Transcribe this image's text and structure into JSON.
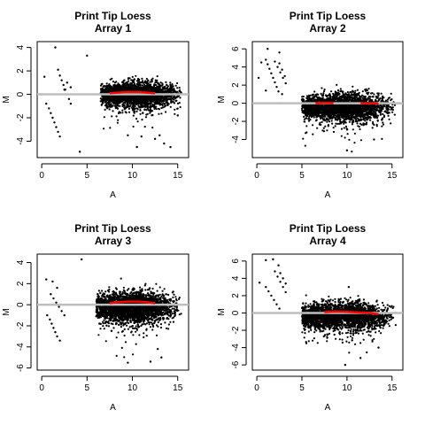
{
  "chart_data": [
    {
      "type": "scatter",
      "title": "Print Tip Loess",
      "subtitle": "Array 1",
      "xlabel": "A",
      "ylabel": "M",
      "xlim": [
        -0.5,
        16.2
      ],
      "ylim": [
        -5.4,
        4.5
      ],
      "xticks": [
        0,
        5,
        10,
        15
      ],
      "yticks": [
        -4,
        -2,
        0,
        2,
        4
      ],
      "reference_line_y": 0,
      "loess_curves": [
        {
          "x": [
            7.5,
            8.5,
            9.5,
            10.5,
            11.5,
            12.5
          ],
          "y": [
            0.1,
            0.15,
            0.2,
            0.2,
            0.15,
            0.1
          ]
        }
      ],
      "main_cloud": {
        "x_range": [
          6.5,
          15.5
        ],
        "y_spread_sd": 0.55,
        "center_y": 0.0
      },
      "outliers": [
        {
          "x": 1.5,
          "y": 4.0
        },
        {
          "x": 0.3,
          "y": 1.5
        },
        {
          "x": 5.0,
          "y": 3.3
        },
        {
          "x": 4.2,
          "y": -4.9
        },
        {
          "x": 0.5,
          "y": -0.8
        },
        {
          "x": 0.8,
          "y": -1.2
        },
        {
          "x": 1.0,
          "y": -1.6
        },
        {
          "x": 1.2,
          "y": -2.0
        },
        {
          "x": 1.4,
          "y": -2.4
        },
        {
          "x": 1.6,
          "y": -2.8
        },
        {
          "x": 1.8,
          "y": -3.2
        },
        {
          "x": 2.0,
          "y": -3.6
        },
        {
          "x": 1.8,
          "y": 2.1
        },
        {
          "x": 2.0,
          "y": 1.6
        },
        {
          "x": 2.2,
          "y": 1.2
        },
        {
          "x": 2.4,
          "y": 0.8
        },
        {
          "x": 2.6,
          "y": 0.4
        },
        {
          "x": 2.8,
          "y": 0.0
        },
        {
          "x": 3.0,
          "y": -0.4
        },
        {
          "x": 3.2,
          "y": -0.8
        },
        {
          "x": 2.5,
          "y": 0.4
        },
        {
          "x": 2.8,
          "y": 1.0
        },
        {
          "x": 3.2,
          "y": 0.6
        },
        {
          "x": 13.0,
          "y": -3.5
        },
        {
          "x": 13.5,
          "y": -4.2
        },
        {
          "x": 14.2,
          "y": -4.5
        },
        {
          "x": 12.5,
          "y": -3.8
        },
        {
          "x": 9.5,
          "y": -3.5
        },
        {
          "x": 11.0,
          "y": -3.6
        },
        {
          "x": 10.5,
          "y": -4.5
        },
        {
          "x": 15.0,
          "y": -1.8
        }
      ]
    },
    {
      "type": "scatter",
      "title": "Print Tip Loess",
      "subtitle": "Array 2",
      "xlabel": "A",
      "ylabel": "M",
      "xlim": [
        -0.5,
        16.2
      ],
      "ylim": [
        -6.0,
        6.8
      ],
      "xticks": [
        0,
        5,
        10,
        15
      ],
      "yticks": [
        -4,
        -2,
        0,
        2,
        4,
        6
      ],
      "reference_line_y": 0,
      "loess_curves": [
        {
          "x": [
            6.5,
            7.5,
            8.5
          ],
          "y": [
            0.0,
            0.05,
            0.0
          ]
        },
        {
          "x": [
            11.5,
            12.5,
            13.5
          ],
          "y": [
            0.0,
            0.0,
            -0.05
          ]
        }
      ],
      "main_cloud": {
        "x_range": [
          5.0,
          15.5
        ],
        "y_spread_sd": 0.8,
        "center_y": -0.4
      },
      "outliers": [
        {
          "x": 1.2,
          "y": 6.0
        },
        {
          "x": 0.5,
          "y": 4.5
        },
        {
          "x": 0.2,
          "y": 2.8
        },
        {
          "x": 2.5,
          "y": 5.6
        },
        {
          "x": 1.0,
          "y": 1.4
        },
        {
          "x": 2.8,
          "y": 1.0
        },
        {
          "x": 2.6,
          "y": 0.0
        },
        {
          "x": 1.0,
          "y": 4.8
        },
        {
          "x": 1.2,
          "y": 4.3
        },
        {
          "x": 1.4,
          "y": 3.8
        },
        {
          "x": 1.6,
          "y": 3.3
        },
        {
          "x": 1.8,
          "y": 2.8
        },
        {
          "x": 2.0,
          "y": 2.3
        },
        {
          "x": 2.2,
          "y": 1.8
        },
        {
          "x": 2.4,
          "y": 1.3
        },
        {
          "x": 2.0,
          "y": 4.6
        },
        {
          "x": 2.3,
          "y": 4.0
        },
        {
          "x": 2.6,
          "y": 3.4
        },
        {
          "x": 2.9,
          "y": 2.8
        },
        {
          "x": 3.2,
          "y": 2.2
        },
        {
          "x": 2.5,
          "y": 4.4
        },
        {
          "x": 2.8,
          "y": 3.7
        },
        {
          "x": 3.1,
          "y": 3.0
        },
        {
          "x": 10.0,
          "y": -5.2
        },
        {
          "x": 13.0,
          "y": -4.0
        }
      ]
    },
    {
      "type": "scatter",
      "title": "Print Tip Loess",
      "subtitle": "Array 3",
      "xlabel": "A",
      "ylabel": "M",
      "xlim": [
        -0.5,
        16.2
      ],
      "ylim": [
        -6.2,
        4.8
      ],
      "xticks": [
        0,
        5,
        10,
        15
      ],
      "yticks": [
        -6,
        -4,
        -2,
        0,
        2,
        4
      ],
      "reference_line_y": 0,
      "loess_curves": [
        {
          "x": [
            7.5,
            8.5,
            9.5,
            10.5,
            11.5,
            12.5
          ],
          "y": [
            0.15,
            0.25,
            0.3,
            0.3,
            0.25,
            0.15
          ]
        }
      ],
      "main_cloud": {
        "x_range": [
          6.0,
          15.5
        ],
        "y_spread_sd": 0.8,
        "center_y": -0.2
      },
      "outliers": [
        {
          "x": 4.4,
          "y": 4.3
        },
        {
          "x": 0.5,
          "y": 2.4
        },
        {
          "x": 1.2,
          "y": 2.2
        },
        {
          "x": 1.7,
          "y": 1.6
        },
        {
          "x": 0.6,
          "y": -1.0
        },
        {
          "x": 0.9,
          "y": -1.4
        },
        {
          "x": 1.1,
          "y": -1.8
        },
        {
          "x": 1.3,
          "y": -2.2
        },
        {
          "x": 1.5,
          "y": -2.6
        },
        {
          "x": 1.7,
          "y": -3.0
        },
        {
          "x": 2.0,
          "y": -3.4
        },
        {
          "x": 1.0,
          "y": 1.0
        },
        {
          "x": 1.3,
          "y": 0.6
        },
        {
          "x": 1.6,
          "y": 0.2
        },
        {
          "x": 1.9,
          "y": -0.2
        },
        {
          "x": 2.2,
          "y": -0.6
        },
        {
          "x": 2.5,
          "y": -1.0
        },
        {
          "x": 12.8,
          "y": -4.2
        },
        {
          "x": 13.2,
          "y": -5.0
        },
        {
          "x": 9.5,
          "y": -5.5
        },
        {
          "x": 12.0,
          "y": -5.4
        }
      ]
    },
    {
      "type": "scatter",
      "title": "Print Tip Loess",
      "subtitle": "Array 4",
      "xlabel": "A",
      "ylabel": "M",
      "xlim": [
        -0.5,
        16.2
      ],
      "ylim": [
        -6.6,
        6.8
      ],
      "xticks": [
        0,
        5,
        10,
        15
      ],
      "yticks": [
        -6,
        -4,
        -2,
        0,
        2,
        4,
        6
      ],
      "reference_line_y": 0,
      "loess_curves": [
        {
          "x": [
            7.5,
            8.5,
            9.5,
            10.5,
            11.5,
            12.5,
            13.5
          ],
          "y": [
            0.1,
            0.15,
            0.15,
            0.1,
            0.05,
            0.0,
            -0.15
          ]
        }
      ],
      "main_cloud": {
        "x_range": [
          5.0,
          15.5
        ],
        "y_spread_sd": 0.8,
        "center_y": -0.3
      },
      "outliers": [
        {
          "x": 1.0,
          "y": 6.1
        },
        {
          "x": 1.8,
          "y": 6.2
        },
        {
          "x": 2.4,
          "y": 5.5
        },
        {
          "x": 0.3,
          "y": 3.5
        },
        {
          "x": 1.0,
          "y": 3.0
        },
        {
          "x": 1.3,
          "y": 2.5
        },
        {
          "x": 1.6,
          "y": 2.0
        },
        {
          "x": 1.9,
          "y": 1.5
        },
        {
          "x": 2.2,
          "y": 1.0
        },
        {
          "x": 2.5,
          "y": 0.5
        },
        {
          "x": 2.0,
          "y": 4.8
        },
        {
          "x": 2.3,
          "y": 4.2
        },
        {
          "x": 2.6,
          "y": 3.6
        },
        {
          "x": 2.9,
          "y": 3.0
        },
        {
          "x": 3.2,
          "y": 2.4
        },
        {
          "x": 2.6,
          "y": 4.6
        },
        {
          "x": 2.9,
          "y": 4.0
        },
        {
          "x": 3.2,
          "y": 3.4
        },
        {
          "x": 10.2,
          "y": 3.0
        },
        {
          "x": 9.8,
          "y": -6.0
        },
        {
          "x": 11.5,
          "y": -5.2
        },
        {
          "x": 13.5,
          "y": -4.0
        }
      ]
    }
  ],
  "colors": {
    "points": "#000000",
    "reference_line": "#bebebe",
    "loess_curve": "#ff0000",
    "axes": "#000000",
    "background": "#ffffff"
  }
}
